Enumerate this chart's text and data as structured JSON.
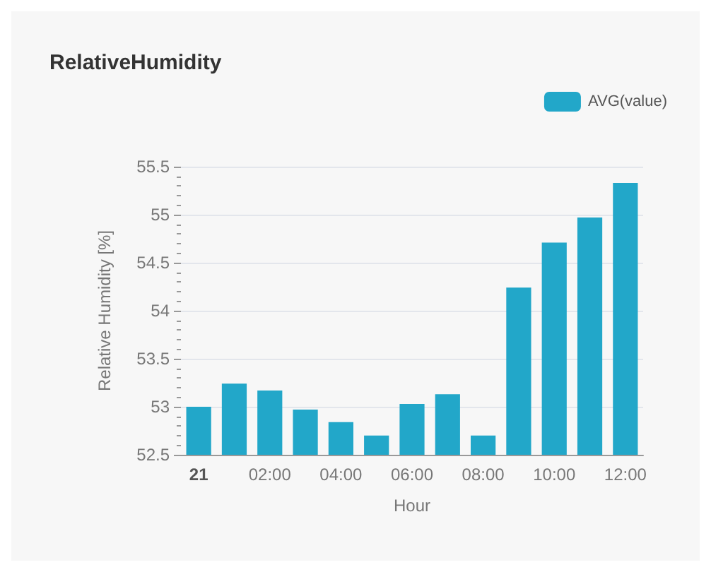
{
  "chart_data": {
    "type": "bar",
    "title": "RelativeHumidity",
    "xlabel": "Hour",
    "ylabel": "Relative Humidity [%]",
    "categories": [
      "21",
      null,
      "02:00",
      null,
      "04:00",
      null,
      "06:00",
      null,
      "08:00",
      null,
      "10:00",
      null,
      "12:00"
    ],
    "series": [
      {
        "name": "AVG(value)",
        "color": "#22a7c9",
        "values": [
          53.0,
          53.24,
          53.17,
          52.97,
          52.84,
          52.7,
          53.03,
          53.13,
          52.7,
          54.24,
          54.71,
          54.97,
          55.33
        ]
      }
    ],
    "ylim": [
      52.5,
      55.5
    ],
    "yticks": [
      52.5,
      53,
      53.5,
      54,
      54.5,
      55,
      55.5
    ],
    "grid": "y",
    "legend": "top right"
  }
}
